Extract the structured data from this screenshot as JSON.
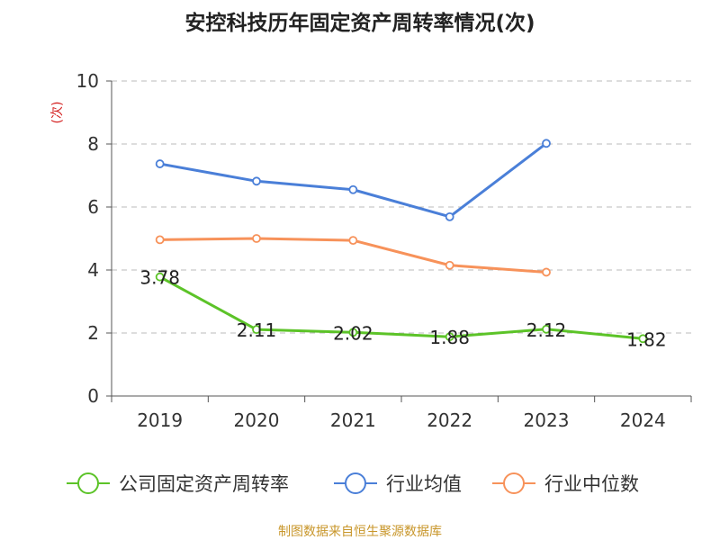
{
  "chart_data": {
    "type": "line",
    "title": "安控科技历年固定资产周转率情况(次)",
    "ylabel": "(次)",
    "xlabel": "",
    "categories": [
      "2019",
      "2020",
      "2021",
      "2022",
      "2023",
      "2024"
    ],
    "ylim": [
      0,
      10
    ],
    "yticks": [
      0,
      2,
      4,
      6,
      8,
      10
    ],
    "grid": true,
    "legend_position": "bottom",
    "series": [
      {
        "name": "公司固定资产周转率",
        "color": "#5cc328",
        "values": [
          3.78,
          2.11,
          2.02,
          1.88,
          2.12,
          1.82
        ],
        "labels": [
          "3.78",
          "2.11",
          "2.02",
          "1.88",
          "2.12",
          "1.82"
        ]
      },
      {
        "name": "行业均值",
        "color": "#4a7fd8",
        "values": [
          7.37,
          6.82,
          6.55,
          5.69,
          8.02,
          null
        ]
      },
      {
        "name": "行业中位数",
        "color": "#f7925a",
        "values": [
          4.96,
          5.0,
          4.94,
          4.15,
          3.93,
          null
        ]
      }
    ]
  },
  "source": "制图数据来自恒生聚源数据库"
}
